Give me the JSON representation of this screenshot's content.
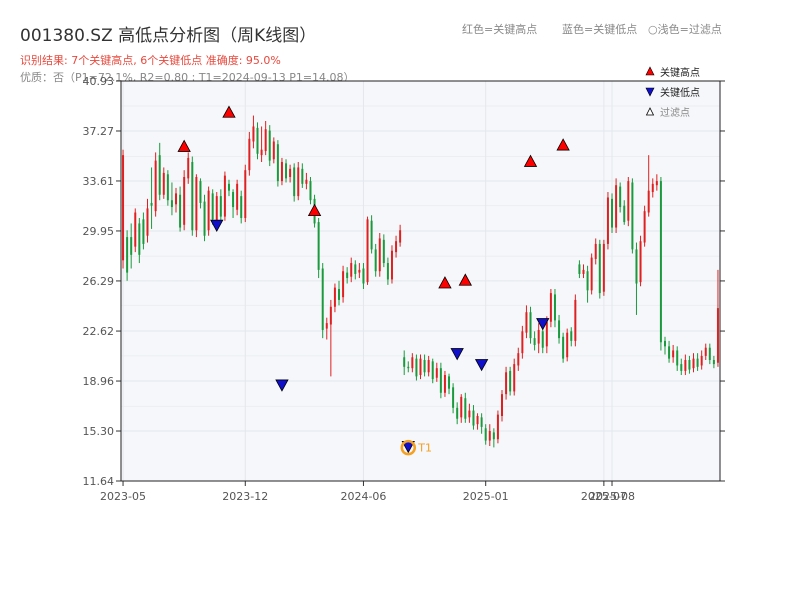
{
  "header": {
    "title": "001380.SZ 高低点分析图（周K线图）",
    "result": "识别结果: 7个关键高点, 6个关键低点  准确度: 95.0%",
    "quality": "优质：否（P1=72.1%, R2=0.80 ; T1=2024-09-13 P1=14.08）",
    "legend_red": "红色=关键高点",
    "legend_blue": "蓝色=关键低点",
    "legend_light": "○浅色=过滤点"
  },
  "colors": {
    "up": "#e02020",
    "down": "#1a9a3c",
    "high_marker": "#ff0000",
    "low_marker": "#1010cc",
    "t1": "#f5a020",
    "plot_bg": "#f5f7fa",
    "grid": "#e4e7ed"
  },
  "chart_data": {
    "type": "candlestick",
    "y_ticks": [
      "11.64",
      "15.30",
      "18.96",
      "22.62",
      "26.29",
      "29.95",
      "33.61",
      "37.27",
      "40.93"
    ],
    "ylim": [
      11.64,
      40.93
    ],
    "x_ticks": [
      {
        "label": "2023-05",
        "i": 0
      },
      {
        "label": "2023-12",
        "i": 30
      },
      {
        "label": "2024-06",
        "i": 59
      },
      {
        "label": "2025-01",
        "i": 89
      },
      {
        "label": "2025-07",
        "i": 118
      },
      {
        "label": "2025-08",
        "i": 120
      }
    ],
    "legend": [
      {
        "label": "关键高点",
        "marker": "high"
      },
      {
        "label": "关键低点",
        "marker": "low"
      },
      {
        "label": "过滤点",
        "marker": "filtered"
      }
    ],
    "t1_label": "T1",
    "candles": [
      [
        27.8,
        35.5,
        27.2,
        35.9
      ],
      [
        29.5,
        26.9,
        26.3,
        30.0
      ],
      [
        29.5,
        28.2,
        27.2,
        30.5
      ],
      [
        28.8,
        31.3,
        28.4,
        31.6
      ],
      [
        30.5,
        28.2,
        27.6,
        30.9
      ],
      [
        30.8,
        29.0,
        28.6,
        31.3
      ],
      [
        29.6,
        31.6,
        29.1,
        32.3
      ],
      [
        32.0,
        31.8,
        30.1,
        34.6
      ],
      [
        31.4,
        35.1,
        31.0,
        35.7
      ],
      [
        35.5,
        32.6,
        32.2,
        36.4
      ],
      [
        32.6,
        34.2,
        32.3,
        34.6
      ],
      [
        34.1,
        32.2,
        31.8,
        34.4
      ],
      [
        32.2,
        31.7,
        31.1,
        33.5
      ],
      [
        31.9,
        32.7,
        31.3,
        33.1
      ],
      [
        32.6,
        30.2,
        29.9,
        33.2
      ],
      [
        30.4,
        33.9,
        30.0,
        34.4
      ],
      [
        33.8,
        35.3,
        33.4,
        35.7
      ],
      [
        35.0,
        30.0,
        29.6,
        35.4
      ],
      [
        30.0,
        33.9,
        29.5,
        34.1
      ],
      [
        33.6,
        32.0,
        31.6,
        33.8
      ],
      [
        32.1,
        29.6,
        29.2,
        32.6
      ],
      [
        30.0,
        32.9,
        29.6,
        33.2
      ],
      [
        32.7,
        30.8,
        30.4,
        33.0
      ],
      [
        30.6,
        32.5,
        30.3,
        32.8
      ],
      [
        32.5,
        31.0,
        30.6,
        33.0
      ],
      [
        31.0,
        34.0,
        30.7,
        34.3
      ],
      [
        33.4,
        32.9,
        32.5,
        33.7
      ],
      [
        32.8,
        31.7,
        30.9,
        33.0
      ],
      [
        31.5,
        33.4,
        31.1,
        33.7
      ],
      [
        32.5,
        30.9,
        30.5,
        32.9
      ],
      [
        30.9,
        34.4,
        30.6,
        34.8
      ],
      [
        34.4,
        36.7,
        34.0,
        37.2
      ],
      [
        36.5,
        37.6,
        36.0,
        38.4
      ],
      [
        37.5,
        35.6,
        35.2,
        37.9
      ],
      [
        35.5,
        35.9,
        35.0,
        37.6
      ],
      [
        35.8,
        37.4,
        35.5,
        38.0
      ],
      [
        37.3,
        35.1,
        34.7,
        37.7
      ],
      [
        35.2,
        36.5,
        34.9,
        36.8
      ],
      [
        36.3,
        33.6,
        33.2,
        36.6
      ],
      [
        33.6,
        35.0,
        33.3,
        35.3
      ],
      [
        34.9,
        33.8,
        33.5,
        35.2
      ],
      [
        33.9,
        34.5,
        33.5,
        34.8
      ],
      [
        34.6,
        32.5,
        32.1,
        34.9
      ],
      [
        32.5,
        34.6,
        32.2,
        35.0
      ],
      [
        34.5,
        33.4,
        33.1,
        34.9
      ],
      [
        33.4,
        33.7,
        33.0,
        34.2
      ],
      [
        33.6,
        32.2,
        31.9,
        33.9
      ],
      [
        32.3,
        30.5,
        30.2,
        32.6
      ],
      [
        30.6,
        27.1,
        26.5,
        30.9
      ],
      [
        27.2,
        22.7,
        22.1,
        27.6
      ],
      [
        22.8,
        23.2,
        22.0,
        23.6
      ],
      [
        23.1,
        24.4,
        19.3,
        24.9
      ],
      [
        24.4,
        25.8,
        24.0,
        26.1
      ],
      [
        25.7,
        24.9,
        24.5,
        26.3
      ],
      [
        25.1,
        27.0,
        24.7,
        27.4
      ],
      [
        26.9,
        26.5,
        26.1,
        27.3
      ],
      [
        26.6,
        27.6,
        26.2,
        28.0
      ],
      [
        27.5,
        26.8,
        26.4,
        27.8
      ],
      [
        26.9,
        27.1,
        26.5,
        27.6
      ],
      [
        27.2,
        26.1,
        25.7,
        27.6
      ],
      [
        26.2,
        30.8,
        26.0,
        31.0
      ],
      [
        30.7,
        28.6,
        28.3,
        31.1
      ],
      [
        28.6,
        27.0,
        26.6,
        29.0
      ],
      [
        27.0,
        29.4,
        26.6,
        29.8
      ],
      [
        29.3,
        27.6,
        27.3,
        29.7
      ],
      [
        27.6,
        26.4,
        26.0,
        28.0
      ],
      [
        26.4,
        28.5,
        26.1,
        28.9
      ],
      [
        28.4,
        29.2,
        28.0,
        29.6
      ],
      [
        29.1,
        30.0,
        28.8,
        30.4
      ],
      [
        20.7,
        20.0,
        19.4,
        21.2
      ],
      [
        20.0,
        19.9,
        19.6,
        20.4
      ],
      [
        19.9,
        20.7,
        19.6,
        21.0
      ],
      [
        20.6,
        19.3,
        19.0,
        20.9
      ],
      [
        19.4,
        20.6,
        19.1,
        20.9
      ],
      [
        20.5,
        19.6,
        19.3,
        20.9
      ],
      [
        19.6,
        20.5,
        19.3,
        20.8
      ],
      [
        20.4,
        19.1,
        18.8,
        20.6
      ],
      [
        19.2,
        19.9,
        18.9,
        20.3
      ],
      [
        19.9,
        18.1,
        17.7,
        20.3
      ],
      [
        18.1,
        19.4,
        17.8,
        19.7
      ],
      [
        19.3,
        18.4,
        18.0,
        19.5
      ],
      [
        18.5,
        17.0,
        16.6,
        18.8
      ],
      [
        17.0,
        16.2,
        15.8,
        17.4
      ],
      [
        16.3,
        17.8,
        15.9,
        18.0
      ],
      [
        17.7,
        16.2,
        15.9,
        18.1
      ],
      [
        16.3,
        16.8,
        15.9,
        17.3
      ],
      [
        16.8,
        15.7,
        15.4,
        17.2
      ],
      [
        15.8,
        16.4,
        15.4,
        16.6
      ],
      [
        16.3,
        15.6,
        15.1,
        16.6
      ],
      [
        15.5,
        14.6,
        14.3,
        15.8
      ],
      [
        14.6,
        15.3,
        14.2,
        15.8
      ],
      [
        15.2,
        14.7,
        14.1,
        15.5
      ],
      [
        14.7,
        16.5,
        14.4,
        16.8
      ],
      [
        16.4,
        18.0,
        16.0,
        18.3
      ],
      [
        18.0,
        19.6,
        17.6,
        20.0
      ],
      [
        19.7,
        18.2,
        17.9,
        20.0
      ],
      [
        18.2,
        20.2,
        17.9,
        20.6
      ],
      [
        20.1,
        21.0,
        19.7,
        21.4
      ],
      [
        21.0,
        22.6,
        20.6,
        23.0
      ],
      [
        22.5,
        24.0,
        22.1,
        24.5
      ],
      [
        24.0,
        22.1,
        21.7,
        24.4
      ],
      [
        22.1,
        21.6,
        21.2,
        22.6
      ],
      [
        21.7,
        22.7,
        21.0,
        23.2
      ],
      [
        22.6,
        21.4,
        21.0,
        23.0
      ],
      [
        21.5,
        23.3,
        21.0,
        23.7
      ],
      [
        23.3,
        25.4,
        22.9,
        25.7
      ],
      [
        25.3,
        23.4,
        22.9,
        25.7
      ],
      [
        23.4,
        22.1,
        21.7,
        23.8
      ],
      [
        22.2,
        20.6,
        20.3,
        22.5
      ],
      [
        20.7,
        22.5,
        20.4,
        22.8
      ],
      [
        22.6,
        21.9,
        21.5,
        22.9
      ],
      [
        21.9,
        24.9,
        21.5,
        25.3
      ],
      [
        27.5,
        26.8,
        26.5,
        27.8
      ],
      [
        26.8,
        27.1,
        26.5,
        27.5
      ],
      [
        27.0,
        25.6,
        24.7,
        27.4
      ],
      [
        25.6,
        28.0,
        25.3,
        28.3
      ],
      [
        27.9,
        29.0,
        27.5,
        29.4
      ],
      [
        29.0,
        25.4,
        25.0,
        29.3
      ],
      [
        25.5,
        29.0,
        25.2,
        29.3
      ],
      [
        29.0,
        32.4,
        28.6,
        32.8
      ],
      [
        32.3,
        30.2,
        29.8,
        32.7
      ],
      [
        30.2,
        33.3,
        29.8,
        33.8
      ],
      [
        33.2,
        31.7,
        31.3,
        33.5
      ],
      [
        31.8,
        30.6,
        30.4,
        32.2
      ],
      [
        30.7,
        33.6,
        30.3,
        33.9
      ],
      [
        33.5,
        28.6,
        28.3,
        33.8
      ],
      [
        28.6,
        26.1,
        23.8,
        29.1
      ],
      [
        26.2,
        29.2,
        25.9,
        29.6
      ],
      [
        29.1,
        31.4,
        28.8,
        31.8
      ],
      [
        31.3,
        32.9,
        31.0,
        35.5
      ],
      [
        32.8,
        33.4,
        32.4,
        33.8
      ],
      [
        33.3,
        33.6,
        32.9,
        34.1
      ],
      [
        33.6,
        21.8,
        21.2,
        33.9
      ],
      [
        21.9,
        21.5,
        20.9,
        22.2
      ],
      [
        21.5,
        20.6,
        20.3,
        21.9
      ],
      [
        20.7,
        21.2,
        20.3,
        21.6
      ],
      [
        21.2,
        20.1,
        19.7,
        21.5
      ],
      [
        20.2,
        19.7,
        19.4,
        20.6
      ],
      [
        19.7,
        20.5,
        19.4,
        20.9
      ],
      [
        20.5,
        19.8,
        19.5,
        20.8
      ],
      [
        19.9,
        20.6,
        19.6,
        21.0
      ],
      [
        20.6,
        20.0,
        19.7,
        21.0
      ],
      [
        20.1,
        20.8,
        19.8,
        21.2
      ],
      [
        20.8,
        21.4,
        20.5,
        21.7
      ],
      [
        21.4,
        20.5,
        20.2,
        21.7
      ],
      [
        20.5,
        20.2,
        19.9,
        20.8
      ],
      [
        20.3,
        24.3,
        20.0,
        27.1
      ]
    ],
    "key_highs": [
      {
        "i": 15,
        "price": 35.7
      },
      {
        "i": 26,
        "price": 38.2
      },
      {
        "i": 47,
        "price": 31.0
      },
      {
        "i": 79,
        "price": 25.7
      },
      {
        "i": 84,
        "price": 25.9
      },
      {
        "i": 100,
        "price": 34.6
      },
      {
        "i": 108,
        "price": 35.8
      }
    ],
    "key_lows": [
      {
        "i": 23,
        "price": 30.3
      },
      {
        "i": 39,
        "price": 18.6
      },
      {
        "i": 70,
        "price": 14.1
      },
      {
        "i": 82,
        "price": 20.9
      },
      {
        "i": 88,
        "price": 20.1
      },
      {
        "i": 103,
        "price": 23.1
      }
    ],
    "t1": {
      "i": 70,
      "price": 14.08
    }
  }
}
